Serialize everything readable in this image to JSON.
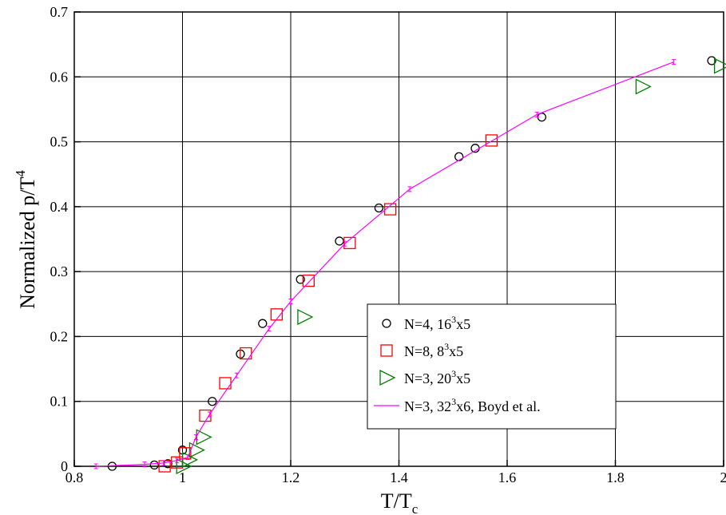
{
  "chart_data": {
    "type": "scatter",
    "xlabel": {
      "main": "T/T",
      "sub": "c"
    },
    "ylabel": {
      "main": "Normalized p/T",
      "sup": "4"
    },
    "xlim": [
      0.8,
      2.0
    ],
    "ylim": [
      0,
      0.7
    ],
    "xticks": [
      0.8,
      1.0,
      1.2,
      1.4,
      1.6,
      1.8,
      2.0
    ],
    "xtick_labels": [
      "0.8",
      "1",
      "1.2",
      "1.4",
      "1.6",
      "1.8",
      "2"
    ],
    "yticks": [
      0,
      0.1,
      0.2,
      0.3,
      0.4,
      0.5,
      0.6,
      0.7
    ],
    "ytick_labels": [
      "0",
      "0.1",
      "0.2",
      "0.3",
      "0.4",
      "0.5",
      "0.6",
      "0.7"
    ],
    "grid": true,
    "legend_position": "center-right",
    "series": [
      {
        "marker": "circle",
        "color": "#000000",
        "legend": {
          "pre": "N=4, 16",
          "sup": "3",
          "post": "x5"
        },
        "points": [
          [
            0.87,
            0.0
          ],
          [
            0.948,
            0.002
          ],
          [
            0.973,
            0.004
          ],
          [
            1.0,
            0.025
          ],
          [
            1.055,
            0.1
          ],
          [
            1.107,
            0.173
          ],
          [
            1.148,
            0.22
          ],
          [
            1.218,
            0.288
          ],
          [
            1.29,
            0.347
          ],
          [
            1.363,
            0.398
          ],
          [
            1.511,
            0.477
          ],
          [
            1.541,
            0.49
          ],
          [
            1.664,
            0.538
          ],
          [
            1.978,
            0.625
          ]
        ]
      },
      {
        "marker": "square",
        "color": "#ff0000",
        "legend": {
          "pre": "N=8, 8",
          "sup": "3",
          "post": "x5"
        },
        "points": [
          [
            0.967,
            0.0
          ],
          [
            0.99,
            0.006
          ],
          [
            1.005,
            0.02
          ],
          [
            1.042,
            0.078
          ],
          [
            1.079,
            0.128
          ],
          [
            1.117,
            0.174
          ],
          [
            1.174,
            0.234
          ],
          [
            1.233,
            0.286
          ],
          [
            1.309,
            0.344
          ],
          [
            1.384,
            0.396
          ],
          [
            1.571,
            0.502
          ]
        ]
      },
      {
        "marker": "triangle-right",
        "color": "#008000",
        "legend": {
          "pre": "N=3, 20",
          "sup": "3",
          "post": "x5"
        },
        "points": [
          [
            1.001,
            0.0
          ],
          [
            1.012,
            0.01
          ],
          [
            1.025,
            0.025
          ],
          [
            1.038,
            0.045
          ],
          [
            1.225,
            0.23
          ],
          [
            1.85,
            0.585
          ],
          [
            1.995,
            0.617
          ]
        ]
      },
      {
        "marker": "line-errorbar",
        "color": "#ff00ff",
        "legend": {
          "pre": "N=3, 32",
          "sup": "3",
          "post": "x6, Boyd et al."
        },
        "points": [
          [
            0.84,
            0.0
          ],
          [
            0.93,
            0.003
          ],
          [
            0.965,
            0.005
          ],
          [
            0.99,
            0.009
          ],
          [
            1.01,
            0.014
          ],
          [
            1.025,
            0.045
          ],
          [
            1.05,
            0.08
          ],
          [
            1.1,
            0.14
          ],
          [
            1.16,
            0.212
          ],
          [
            1.2,
            0.254
          ],
          [
            1.3,
            0.343
          ],
          [
            1.42,
            0.427
          ],
          [
            1.655,
            0.542
          ],
          [
            1.908,
            0.623
          ]
        ]
      }
    ]
  }
}
